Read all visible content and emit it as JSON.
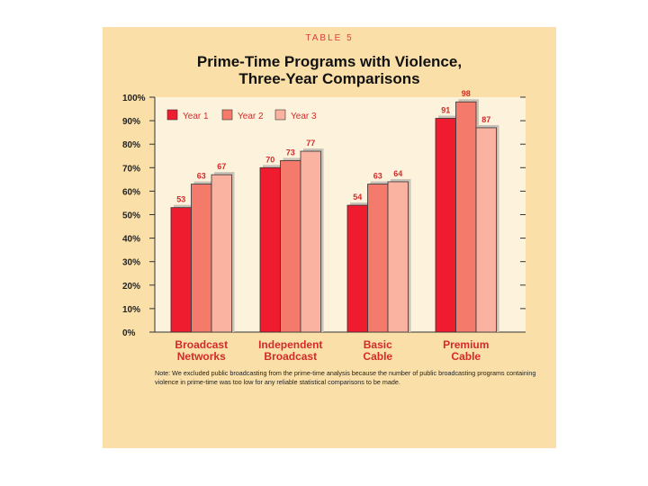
{
  "header": {
    "table_label": "TABLE 5",
    "title_line1": "Prime-Time Programs with Violence,",
    "title_line2": "Three-Year Comparisons"
  },
  "note": "Note: We excluded public broadcasting from the prime-time analysis because the number of public broadcasting programs containing violence in prime-time was too low for any reliable statistical comparisons to be made.",
  "chart_data": {
    "type": "bar",
    "title": "Prime-Time Programs with Violence, Three-Year Comparisons",
    "categories": [
      [
        "Broadcast",
        "Networks"
      ],
      [
        "Independent",
        "Broadcast"
      ],
      [
        "Basic",
        "Cable"
      ],
      [
        "Premium",
        "Cable"
      ]
    ],
    "series": [
      {
        "name": "Year 1",
        "color": "#ee1c2e",
        "values": [
          53,
          70,
          54,
          91
        ]
      },
      {
        "name": "Year 2",
        "color": "#f47a6c",
        "values": [
          63,
          73,
          63,
          98
        ]
      },
      {
        "name": "Year 3",
        "color": "#f9b3a0",
        "values": [
          67,
          77,
          64,
          87
        ]
      }
    ],
    "yticks": [
      "0%",
      "10%",
      "20%",
      "30%",
      "40%",
      "50%",
      "60%",
      "70%",
      "80%",
      "90%",
      "100%"
    ],
    "ylim": [
      0,
      100
    ],
    "grid": false,
    "legend_position": "top-left",
    "plot_background": "#fdf3dc",
    "panel_background": "#fae0a8"
  }
}
